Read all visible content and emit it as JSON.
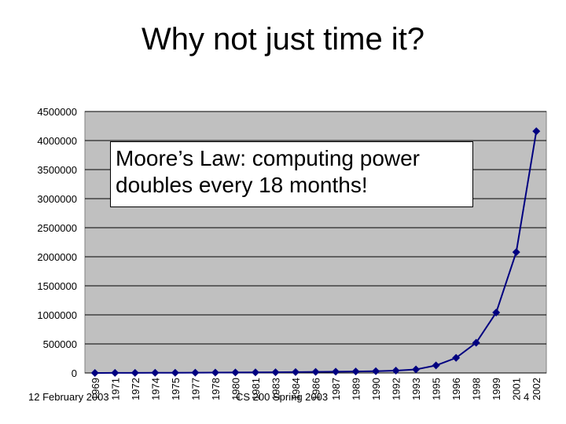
{
  "slide": {
    "title": "Why not just time it?",
    "callout": "Moore’s Law: computing power doubles every 18 months!",
    "footer_left": "12 February 2003",
    "footer_center": "CS 200 Spring 2003",
    "footer_right": "4"
  },
  "chart_data": {
    "type": "line",
    "title": "",
    "xlabel": "",
    "ylabel": "",
    "categories": [
      "1969",
      "1971",
      "1972",
      "1974",
      "1975",
      "1977",
      "1978",
      "1980",
      "1981",
      "1983",
      "1984",
      "1986",
      "1987",
      "1989",
      "1990",
      "1992",
      "1993",
      "1995",
      "1996",
      "1998",
      "1999",
      "2001",
      "2002"
    ],
    "series": [
      {
        "values": [
          0,
          1000,
          2000,
          3000,
          4000,
          5000,
          6000,
          8000,
          10000,
          12000,
          15000,
          18000,
          22000,
          25000,
          30000,
          40000,
          60000,
          130000,
          260000,
          520000,
          1040000,
          2080000,
          4160000
        ],
        "color": "#000080"
      }
    ],
    "ylim": [
      0,
      4500000
    ],
    "yticks": [
      "0",
      "500000",
      "1000000",
      "1500000",
      "2000000",
      "2500000",
      "3000000",
      "3500000",
      "4000000",
      "4500000"
    ],
    "grid": true,
    "legend": "none",
    "plot_background": "#c0c0c0"
  }
}
